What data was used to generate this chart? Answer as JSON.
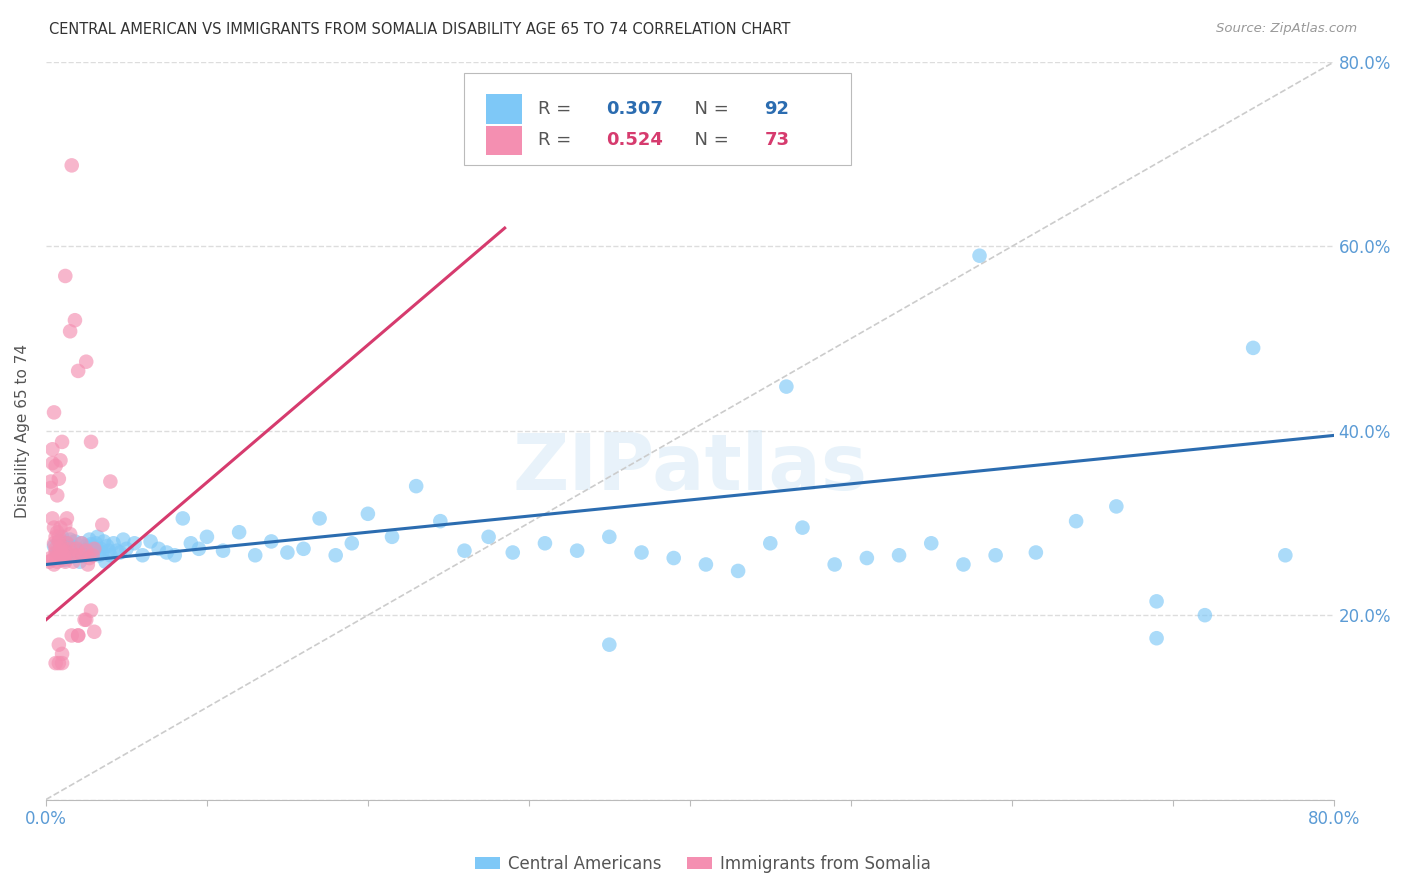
{
  "title": "CENTRAL AMERICAN VS IMMIGRANTS FROM SOMALIA DISABILITY AGE 65 TO 74 CORRELATION CHART",
  "source": "Source: ZipAtlas.com",
  "ylabel": "Disability Age 65 to 74",
  "xlim": [
    0.0,
    0.8
  ],
  "ylim": [
    0.0,
    0.8
  ],
  "ytick_positions": [
    0.0,
    0.2,
    0.4,
    0.6,
    0.8
  ],
  "ytick_labels": [
    "",
    "20.0%",
    "40.0%",
    "60.0%",
    "80.0%"
  ],
  "xtick_positions": [
    0.0,
    0.1,
    0.2,
    0.3,
    0.4,
    0.5,
    0.6,
    0.7,
    0.8
  ],
  "xtick_labels": [
    "0.0%",
    "",
    "",
    "",
    "",
    "",
    "",
    "",
    "80.0%"
  ],
  "blue_R": 0.307,
  "blue_N": 92,
  "pink_R": 0.524,
  "pink_N": 73,
  "blue_color": "#7ec8f7",
  "pink_color": "#f48fb1",
  "blue_line_color": "#2b6cb0",
  "pink_line_color": "#d63b6e",
  "diagonal_color": "#cccccc",
  "grid_color": "#dddddd",
  "axis_label_color": "#5b9bd5",
  "title_color": "#333333",
  "watermark": "ZIPatlas",
  "blue_line_x0": 0.0,
  "blue_line_y0": 0.255,
  "blue_line_x1": 0.8,
  "blue_line_y1": 0.395,
  "pink_line_x0": 0.0,
  "pink_line_y0": 0.195,
  "pink_line_x1": 0.285,
  "pink_line_y1": 0.62,
  "blue_scatter_x": [
    0.005,
    0.007,
    0.008,
    0.01,
    0.01,
    0.012,
    0.013,
    0.014,
    0.015,
    0.015,
    0.016,
    0.017,
    0.018,
    0.019,
    0.02,
    0.021,
    0.022,
    0.023,
    0.024,
    0.025,
    0.026,
    0.027,
    0.028,
    0.029,
    0.03,
    0.031,
    0.032,
    0.033,
    0.034,
    0.035,
    0.036,
    0.037,
    0.038,
    0.039,
    0.04,
    0.042,
    0.044,
    0.046,
    0.048,
    0.05,
    0.055,
    0.06,
    0.065,
    0.07,
    0.075,
    0.08,
    0.085,
    0.09,
    0.095,
    0.1,
    0.11,
    0.12,
    0.13,
    0.14,
    0.15,
    0.16,
    0.17,
    0.18,
    0.19,
    0.2,
    0.215,
    0.23,
    0.245,
    0.26,
    0.275,
    0.29,
    0.31,
    0.33,
    0.35,
    0.37,
    0.39,
    0.41,
    0.43,
    0.45,
    0.47,
    0.49,
    0.51,
    0.53,
    0.55,
    0.57,
    0.59,
    0.615,
    0.64,
    0.665,
    0.69,
    0.72,
    0.75,
    0.77,
    0.35,
    0.46,
    0.58,
    0.69
  ],
  "blue_scatter_y": [
    0.275,
    0.268,
    0.28,
    0.272,
    0.285,
    0.26,
    0.278,
    0.265,
    0.27,
    0.282,
    0.275,
    0.268,
    0.28,
    0.265,
    0.27,
    0.258,
    0.278,
    0.265,
    0.271,
    0.275,
    0.268,
    0.282,
    0.277,
    0.265,
    0.27,
    0.278,
    0.285,
    0.265,
    0.272,
    0.268,
    0.28,
    0.258,
    0.275,
    0.27,
    0.265,
    0.278,
    0.27,
    0.268,
    0.282,
    0.272,
    0.278,
    0.265,
    0.28,
    0.272,
    0.268,
    0.265,
    0.305,
    0.278,
    0.272,
    0.285,
    0.27,
    0.29,
    0.265,
    0.28,
    0.268,
    0.272,
    0.305,
    0.265,
    0.278,
    0.31,
    0.285,
    0.34,
    0.302,
    0.27,
    0.285,
    0.268,
    0.278,
    0.27,
    0.285,
    0.268,
    0.262,
    0.255,
    0.248,
    0.278,
    0.295,
    0.255,
    0.262,
    0.265,
    0.278,
    0.255,
    0.265,
    0.268,
    0.302,
    0.318,
    0.175,
    0.2,
    0.49,
    0.265,
    0.168,
    0.448,
    0.59,
    0.215
  ],
  "pink_scatter_x": [
    0.002,
    0.003,
    0.004,
    0.005,
    0.006,
    0.007,
    0.008,
    0.009,
    0.01,
    0.01,
    0.011,
    0.012,
    0.013,
    0.014,
    0.015,
    0.016,
    0.017,
    0.018,
    0.019,
    0.02,
    0.021,
    0.022,
    0.023,
    0.024,
    0.025,
    0.026,
    0.027,
    0.028,
    0.029,
    0.03,
    0.003,
    0.004,
    0.005,
    0.006,
    0.007,
    0.008,
    0.009,
    0.01,
    0.004,
    0.005,
    0.006,
    0.007,
    0.008,
    0.009,
    0.01,
    0.011,
    0.012,
    0.013,
    0.003,
    0.004,
    0.005,
    0.006,
    0.007,
    0.008,
    0.009,
    0.015,
    0.02,
    0.025,
    0.03,
    0.035,
    0.04,
    0.008,
    0.01,
    0.015,
    0.02,
    0.025,
    0.028,
    0.012,
    0.016,
    0.018,
    0.008,
    0.01,
    0.006
  ],
  "pink_scatter_y": [
    0.258,
    0.262,
    0.26,
    0.255,
    0.268,
    0.258,
    0.268,
    0.272,
    0.26,
    0.275,
    0.265,
    0.258,
    0.278,
    0.268,
    0.272,
    0.178,
    0.258,
    0.265,
    0.272,
    0.178,
    0.265,
    0.278,
    0.265,
    0.195,
    0.27,
    0.255,
    0.262,
    0.205,
    0.265,
    0.272,
    0.345,
    0.38,
    0.42,
    0.362,
    0.33,
    0.348,
    0.368,
    0.388,
    0.305,
    0.295,
    0.285,
    0.29,
    0.28,
    0.272,
    0.265,
    0.265,
    0.298,
    0.305,
    0.338,
    0.365,
    0.278,
    0.272,
    0.262,
    0.285,
    0.295,
    0.288,
    0.178,
    0.195,
    0.182,
    0.298,
    0.345,
    0.168,
    0.158,
    0.508,
    0.465,
    0.475,
    0.388,
    0.568,
    0.688,
    0.52,
    0.148,
    0.148,
    0.148
  ]
}
